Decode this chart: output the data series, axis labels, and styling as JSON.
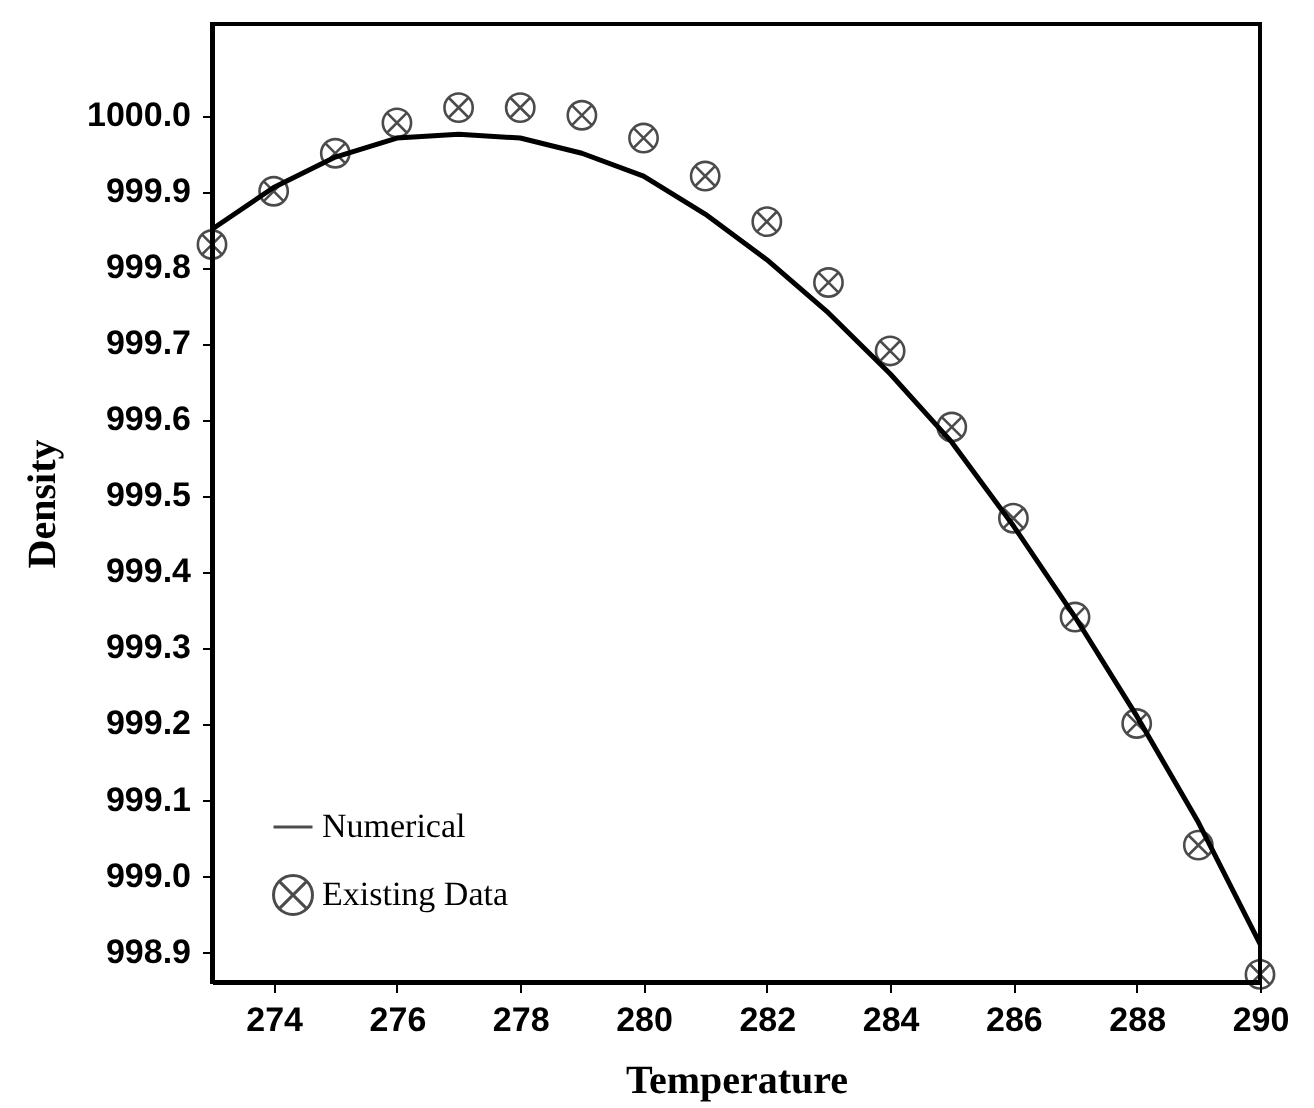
{
  "chart_data": {
    "type": "scatter",
    "xlabel": "Temperature",
    "ylabel": "Density",
    "xlim": [
      273,
      290
    ],
    "ylim": [
      998.86,
      1000.12
    ],
    "xticks": [
      274,
      276,
      278,
      280,
      282,
      284,
      286,
      288,
      290
    ],
    "yticks": [
      998.9,
      {
        "value": 999,
        "label": "999.0"
      },
      999.1,
      999.2,
      999.3,
      999.4,
      999.5,
      999.6,
      999.7,
      999.8,
      999.9,
      {
        "value": 1000,
        "label": "1000.0"
      }
    ],
    "grid": false,
    "legend": "bottom left",
    "series": [
      {
        "name": "Numerical",
        "type": "line",
        "color": "#000000",
        "line_style": "solid",
        "marker": "none",
        "x": [
          273,
          274,
          275,
          276,
          277,
          278,
          279,
          280,
          281,
          282,
          283,
          284,
          285,
          286,
          287,
          288,
          289,
          290
        ],
        "values": [
          999.85,
          999.905,
          999.945,
          999.97,
          999.975,
          999.97,
          999.95,
          999.92,
          999.87,
          999.81,
          999.74,
          999.66,
          999.57,
          999.46,
          999.34,
          999.21,
          999.07,
          998.91
        ]
      },
      {
        "name": "Existing Data",
        "color": "#000000",
        "marker": "cross",
        "x": [
          273,
          274,
          275,
          276,
          277,
          278,
          279,
          280,
          281,
          282,
          283,
          284,
          285,
          286,
          287,
          288,
          289,
          290
        ],
        "values": [
          999.83,
          999.9,
          999.95,
          999.99,
          1000.01,
          1000.01,
          1000.0,
          999.97,
          999.92,
          999.86,
          999.78,
          999.69,
          999.59,
          999.47,
          999.34,
          999.2,
          999.04,
          998.87
        ]
      }
    ]
  }
}
